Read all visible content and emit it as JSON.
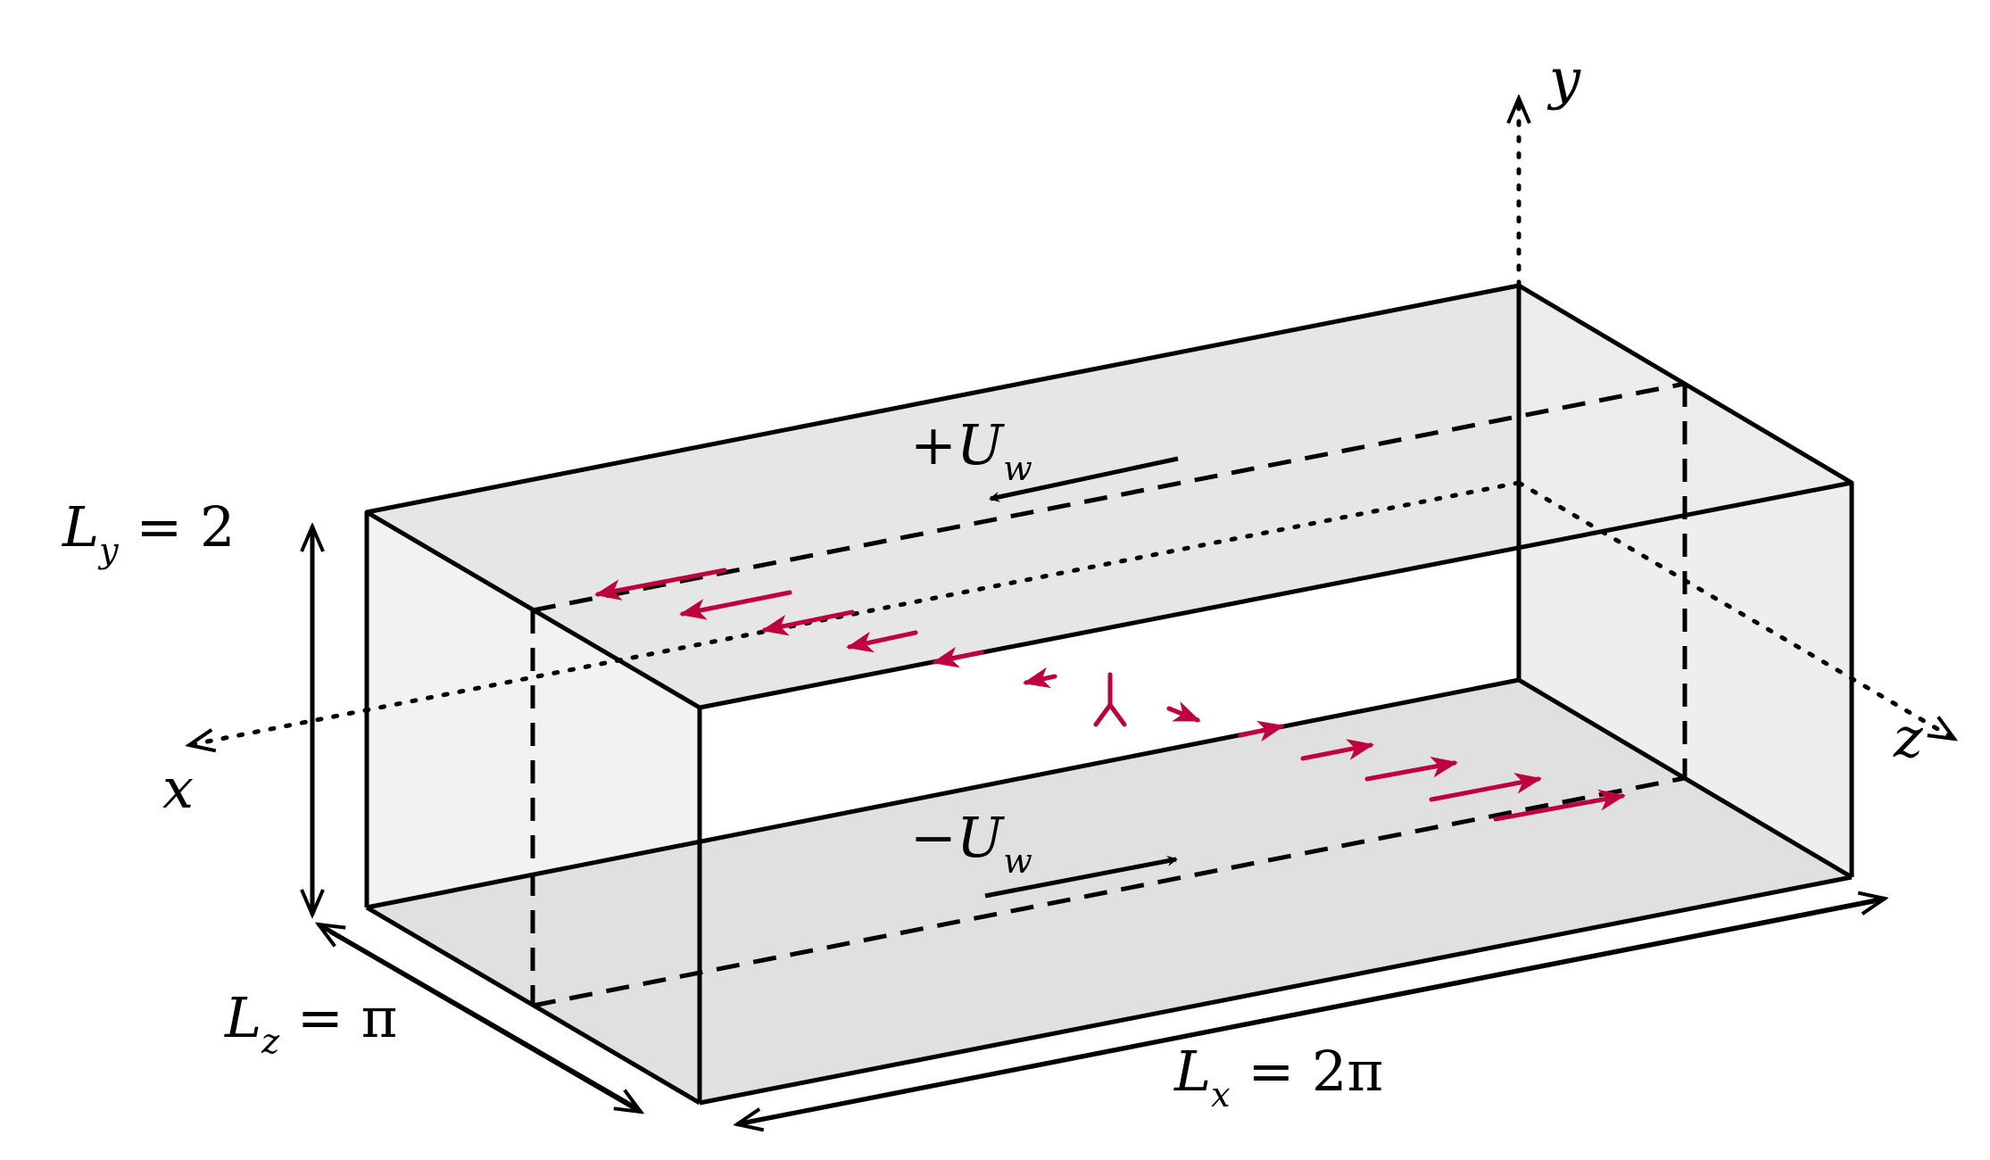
{
  "axes": {
    "x": "x",
    "y": "y",
    "z": "z"
  },
  "dimensions": {
    "ly": {
      "base": "L",
      "sub": "y",
      "rest": " = 2"
    },
    "lz": {
      "base": "L",
      "sub": "z",
      "rest": " = π"
    },
    "lx": {
      "base": "L",
      "sub": "x",
      "rest": " = 2π"
    }
  },
  "walls": {
    "top": {
      "sign": "+",
      "base": "U",
      "sub": "w"
    },
    "bottom": {
      "sign": "−",
      "base": "U",
      "sub": "w"
    }
  },
  "colors": {
    "outline": "#000000",
    "profile": "#c0003c",
    "face_top": "#e6e6e6",
    "face_bottom": "#e0e0e0",
    "face_side": "#f2f2f2",
    "face_back": "#ececec"
  }
}
